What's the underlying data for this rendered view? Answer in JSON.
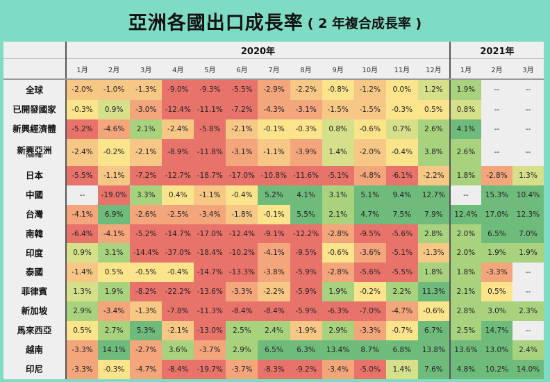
{
  "title": {
    "main": "亞洲各國出口成長率",
    "sub": "( 2 年複合成長率 )"
  },
  "colors": {
    "background": "#7fdcc4",
    "header_bg": "#efefef",
    "missing": "#eeeeee",
    "neg_strong": "#e8736b",
    "neg_mid": "#f3a57c",
    "neg_light": "#f7c785",
    "neutral": "#fbe48b",
    "pos_light": "#d6e08a",
    "pos_mid": "#a9d27f",
    "pos_strong": "#6fbb7b"
  },
  "chart_data": {
    "type": "heatmap",
    "title": "亞洲各國出口成長率 ( 2 年複合成長率 )",
    "unit": "%",
    "column_groups": [
      {
        "label": "2020年",
        "span": 12
      },
      {
        "label": "2021年",
        "span": 3
      }
    ],
    "columns": [
      "1月",
      "2月",
      "3月",
      "4月",
      "5月",
      "6月",
      "7月",
      "8月",
      "9月",
      "10月",
      "11月",
      "12月",
      "1月",
      "2月",
      "3月"
    ],
    "rows": [
      {
        "label": "全球",
        "sub": "",
        "values": [
          "-2.0%",
          "-1.0%",
          "-1.3%",
          "-9.0%",
          "-9.3%",
          "-5.5%",
          "-2.9%",
          "-2.2%",
          "-0.8%",
          "-1.2%",
          "0.0%",
          "1.2%",
          "1.9%",
          "--",
          "--"
        ]
      },
      {
        "label": "已開發國家",
        "sub": "",
        "values": [
          "-0.3%",
          "0.9%",
          "-3.0%",
          "-12.4%",
          "-11.1%",
          "-7.2%",
          "-4.3%",
          "-3.1%",
          "-1.5%",
          "-1.5%",
          "-0.3%",
          "0.5%",
          "0.8%",
          "--",
          "--"
        ]
      },
      {
        "label": "新興經濟體",
        "sub": "",
        "values": [
          "-5.2%",
          "-4.6%",
          "2.1%",
          "-2.4%",
          "-5.8%",
          "-2.1%",
          "-0.1%",
          "-0.3%",
          "0.8%",
          "-0.6%",
          "0.7%",
          "2.6%",
          "4.1%",
          "--",
          "--"
        ]
      },
      {
        "label": "新興亞洲",
        "sub": "(排除中國)",
        "values": [
          "-2.4%",
          "-0.2%",
          "-2.1%",
          "-8.9%",
          "-11.8%",
          "-3.1%",
          "-1.1%",
          "-3.9%",
          "1.4%",
          "-2.0%",
          "-0.4%",
          "3.8%",
          "2.6%",
          "--",
          "--"
        ]
      },
      {
        "label": "日本",
        "sub": "",
        "values": [
          "-5.5%",
          "-1.1%",
          "-7.2%",
          "-12.7%",
          "-18.7%",
          "-17.0%",
          "-10.8%",
          "-11.6%",
          "-5.1%",
          "-4.8%",
          "-6.1%",
          "-2.2%",
          "1.8%",
          "-2.8%",
          "1.3%"
        ]
      },
      {
        "label": "中國",
        "sub": "",
        "values": [
          "--",
          "-19.0%",
          "3.3%",
          "0.4%",
          "-1.1%",
          "-0.4%",
          "5.2%",
          "4.1%",
          "3.1%",
          "5.1%",
          "9.4%",
          "12.7%",
          "--",
          "15.3%",
          "10.4%"
        ]
      },
      {
        "label": "台灣",
        "sub": "",
        "values": [
          "-4.1%",
          "6.9%",
          "-2.6%",
          "-2.5%",
          "-3.4%",
          "-1.8%",
          "-0.1%",
          "5.5%",
          "2.1%",
          "4.7%",
          "7.5%",
          "7.9%",
          "12.4%",
          "17.0%",
          "12.3%"
        ]
      },
      {
        "label": "南韓",
        "sub": "",
        "values": [
          "-6.4%",
          "-4.1%",
          "-5.2%",
          "-14.7%",
          "-17.0%",
          "-12.4%",
          "-9.1%",
          "-12.2%",
          "-2.8%",
          "-9.5%",
          "-5.6%",
          "2.8%",
          "2.0%",
          "6.5%",
          "7.0%"
        ]
      },
      {
        "label": "印度",
        "sub": "",
        "values": [
          "0.9%",
          "3.1%",
          "-14.4%",
          "-37.0%",
          "-18.4%",
          "-10.2%",
          "-4.1%",
          "-9.5%",
          "-0.6%",
          "-3.6%",
          "-5.1%",
          "-1.3%",
          "2.0%",
          "1.9%",
          "1.9%"
        ]
      },
      {
        "label": "泰國",
        "sub": "",
        "values": [
          "-1.4%",
          "0.5%",
          "-0.5%",
          "-0.4%",
          "-14.7%",
          "-13.3%",
          "-3.8%",
          "-5.9%",
          "-2.8%",
          "-5.6%",
          "-5.5%",
          "1.8%",
          "1.8%",
          "-3.3%",
          "--"
        ]
      },
      {
        "label": "菲律賓",
        "sub": "",
        "values": [
          "1.3%",
          "1.9%",
          "-8.2%",
          "-22.2%",
          "-13.6%",
          "-3.3%",
          "-2.2%",
          "-5.9%",
          "1.9%",
          "-0.2%",
          "2.2%",
          "11.3%",
          "2.1%",
          "0.5%",
          "--"
        ]
      },
      {
        "label": "新加坡",
        "sub": "",
        "values": [
          "2.9%",
          "-3.4%",
          "-1.3%",
          "-7.8%",
          "-11.3%",
          "-8.4%",
          "-8.4%",
          "-5.9%",
          "-6.3%",
          "-7.0%",
          "-4.7%",
          "-0.6%",
          "2.8%",
          "3.0%",
          "2.3%"
        ]
      },
      {
        "label": "馬來西亞",
        "sub": "",
        "values": [
          "0.5%",
          "2.7%",
          "5.3%",
          "-2.1%",
          "-13.0%",
          "2.5%",
          "2.4%",
          "-1.9%",
          "2.9%",
          "-3.3%",
          "-0.7%",
          "6.7%",
          "2.5%",
          "14.7%",
          "--"
        ]
      },
      {
        "label": "越南",
        "sub": "",
        "values": [
          "-3.3%",
          "14.1%",
          "-2.7%",
          "3.6%",
          "-3.7%",
          "2.9%",
          "6.5%",
          "6.3%",
          "13.4%",
          "8.7%",
          "6.8%",
          "13.8%",
          "13.6%",
          "13.0%",
          "2.4%"
        ]
      },
      {
        "label": "印尼",
        "sub": "",
        "values": [
          "-3.3%",
          "-0.3%",
          "-4.7%",
          "-8.4%",
          "-19.7%",
          "-3.7%",
          "-8.3%",
          "-9.2%",
          "-3.4%",
          "-5.0%",
          "1.4%",
          "7.6%",
          "4.8%",
          "10.2%",
          "14.0%"
        ]
      }
    ]
  }
}
